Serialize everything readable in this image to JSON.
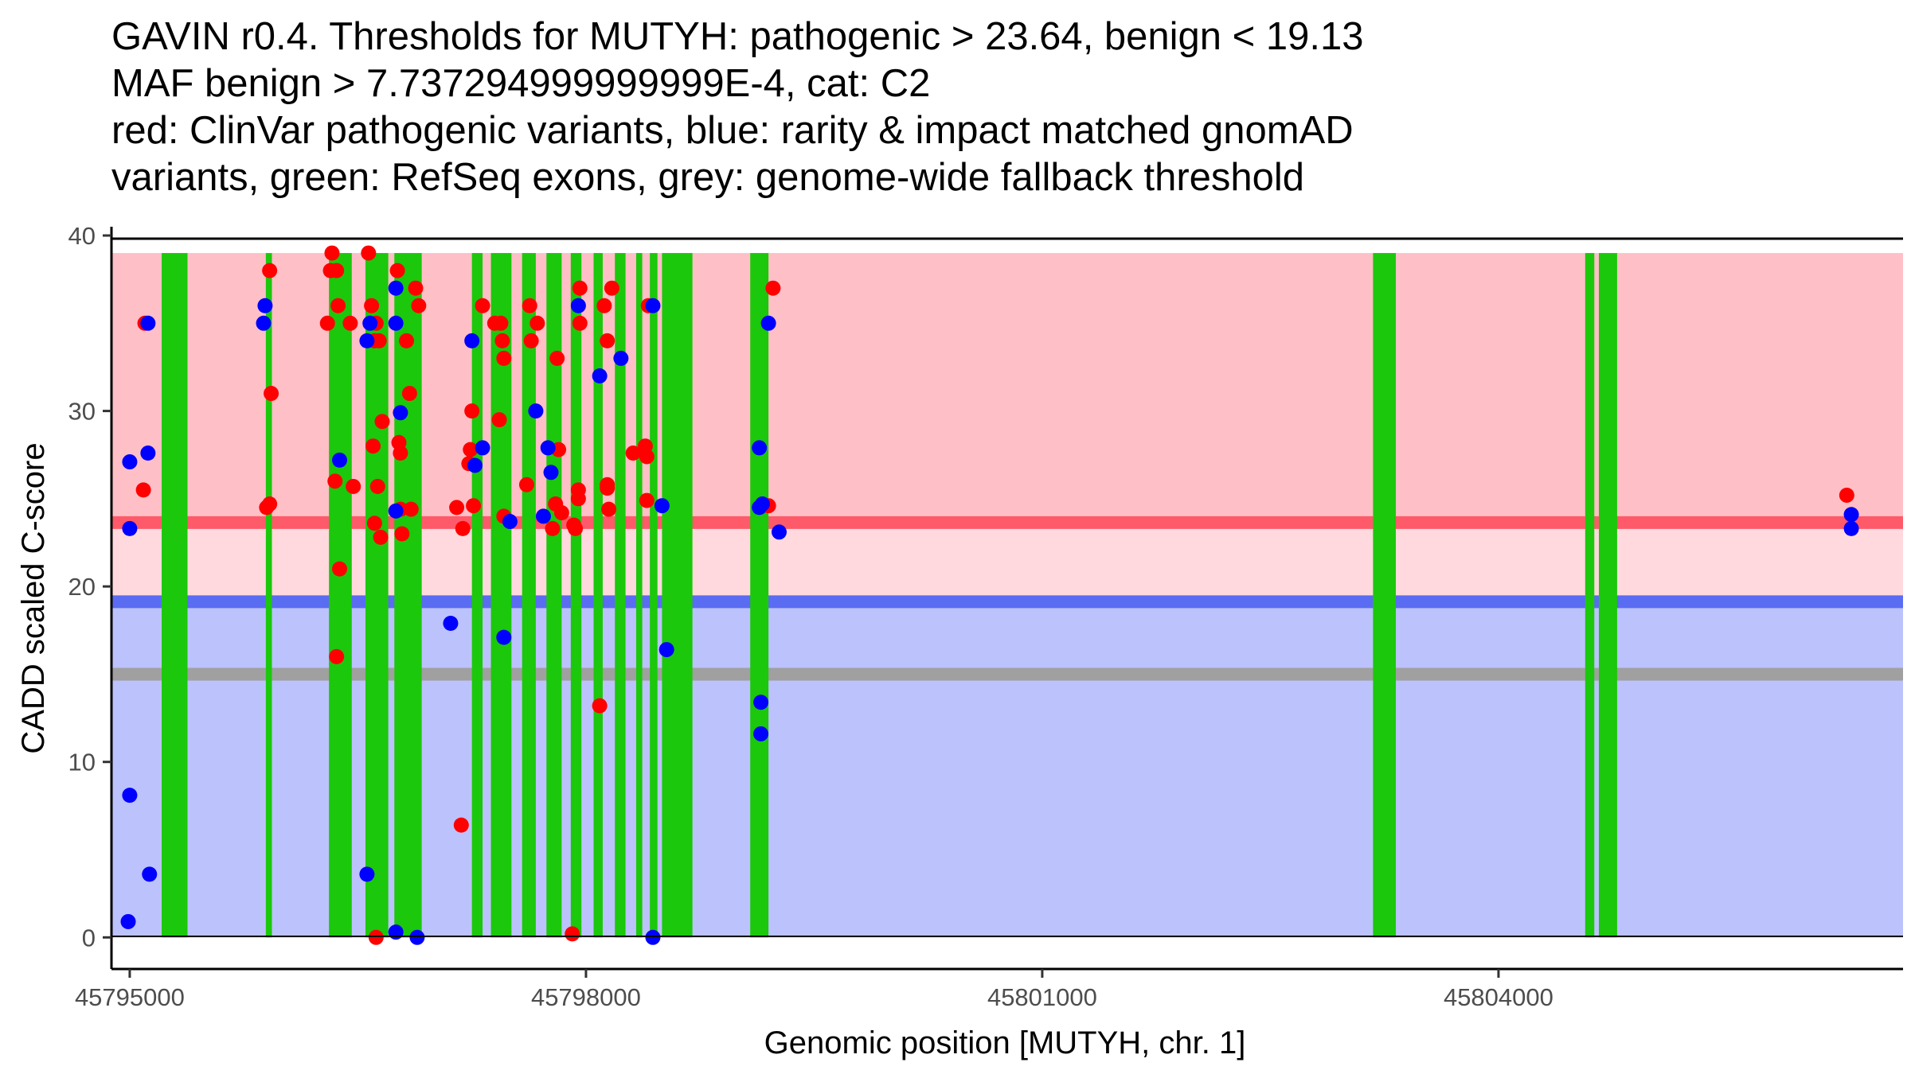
{
  "chart_data": {
    "type": "scatter",
    "title_lines": [
      "GAVIN r0.4. Thresholds for MUTYH: pathogenic > 23.64, benign < 19.13",
      "MAF benign > 7.737294999999999E-4, cat: C2",
      "red: ClinVar pathogenic variants, blue: rarity & impact matched gnomAD",
      "variants, green: RefSeq exons, grey: genome-wide fallback threshold"
    ],
    "xlabel": "Genomic position [MUTYH, chr. 1]",
    "ylabel": "CADD scaled C-score",
    "xlim": [
      45794880,
      45806660
    ],
    "ylim": [
      -1.8,
      40.5
    ],
    "x_ticks": [
      45795000,
      45798000,
      45801000,
      45804000
    ],
    "y_ticks": [
      0,
      10,
      20,
      30,
      40
    ],
    "thresholds": {
      "pathogenic": 23.64,
      "benign": 19.13,
      "genome_wide_fallback": 15,
      "max_score": 39
    },
    "colors": {
      "pathogenic_region": "#ffbfc6",
      "uncertain_region": "#ffd9de",
      "benign_region": "#bcc2fb",
      "pathogenic_line": "#ff5a6a",
      "benign_line": "#5a6cf2",
      "fallback_line": "#a0a0a0",
      "exon": "#1bc80b",
      "clinvar": "#ff0000",
      "gnomad": "#0000ff"
    },
    "exons": [
      [
        45795210,
        45795380
      ],
      [
        45795895,
        45795935
      ],
      [
        45796310,
        45796460
      ],
      [
        45796550,
        45796700
      ],
      [
        45796740,
        45796920
      ],
      [
        45797250,
        45797320
      ],
      [
        45797375,
        45797510
      ],
      [
        45797580,
        45797670
      ],
      [
        45797740,
        45797840
      ],
      [
        45797900,
        45797970
      ],
      [
        45798050,
        45798110
      ],
      [
        45798190,
        45798260
      ],
      [
        45798330,
        45798370
      ],
      [
        45798420,
        45798470
      ],
      [
        45798500,
        45798700
      ],
      [
        45799080,
        45799200
      ],
      [
        45803175,
        45803325
      ],
      [
        45804570,
        45804630
      ],
      [
        45804660,
        45804780
      ]
    ],
    "series": [
      {
        "name": "ClinVar pathogenic variants",
        "color": "#ff0000",
        "points": [
          [
            45795100,
            35
          ],
          [
            45795090,
            25.5
          ],
          [
            45795920,
            38
          ],
          [
            45795930,
            31
          ],
          [
            45795900,
            24.5
          ],
          [
            45795920,
            24.7
          ],
          [
            45796300,
            35
          ],
          [
            45796330,
            39
          ],
          [
            45796320,
            38
          ],
          [
            45796360,
            38
          ],
          [
            45796370,
            36
          ],
          [
            45796350,
            26
          ],
          [
            45796380,
            21
          ],
          [
            45796360,
            16
          ],
          [
            45796450,
            35
          ],
          [
            45796470,
            25.7
          ],
          [
            45796570,
            39
          ],
          [
            45796590,
            36
          ],
          [
            45796600,
            28
          ],
          [
            45796620,
            35
          ],
          [
            45796610,
            34
          ],
          [
            45796640,
            34
          ],
          [
            45796630,
            25.7
          ],
          [
            45796610,
            23.6
          ],
          [
            45796660,
            29.4
          ],
          [
            45796650,
            22.8
          ],
          [
            45796620,
            0
          ],
          [
            45796760,
            38
          ],
          [
            45796780,
            27.6
          ],
          [
            45796770,
            28.2
          ],
          [
            45796780,
            24.4
          ],
          [
            45796790,
            23
          ],
          [
            45796820,
            34
          ],
          [
            45796840,
            31
          ],
          [
            45796850,
            24.4
          ],
          [
            45796880,
            37
          ],
          [
            45796900,
            36
          ],
          [
            45797150,
            24.5
          ],
          [
            45797190,
            23.3
          ],
          [
            45797230,
            27
          ],
          [
            45797240,
            27.8
          ],
          [
            45797250,
            30
          ],
          [
            45797260,
            24.6
          ],
          [
            45797180,
            6.4
          ],
          [
            45797320,
            36
          ],
          [
            45797400,
            35
          ],
          [
            45797440,
            35
          ],
          [
            45797460,
            33
          ],
          [
            45797450,
            34
          ],
          [
            45797430,
            29.5
          ],
          [
            45797460,
            24
          ],
          [
            45797630,
            36
          ],
          [
            45797640,
            34
          ],
          [
            45797680,
            35
          ],
          [
            45797610,
            25.8
          ],
          [
            45797810,
            33
          ],
          [
            45797820,
            27.8
          ],
          [
            45797780,
            23.3
          ],
          [
            45797800,
            24.7
          ],
          [
            45797840,
            24.2
          ],
          [
            45797920,
            23.5
          ],
          [
            45797930,
            23.3
          ],
          [
            45797950,
            25.5
          ],
          [
            45797950,
            25
          ],
          [
            45797910,
            0.2
          ],
          [
            45797960,
            35
          ],
          [
            45797960,
            37
          ],
          [
            45798120,
            36
          ],
          [
            45798140,
            34
          ],
          [
            45798170,
            37
          ],
          [
            45798140,
            25.8
          ],
          [
            45798140,
            25.6
          ],
          [
            45798150,
            24.4
          ],
          [
            45798090,
            13.2
          ],
          [
            45798310,
            27.6
          ],
          [
            45798390,
            28
          ],
          [
            45798400,
            27.4
          ],
          [
            45798410,
            36
          ],
          [
            45798400,
            24.9
          ],
          [
            45799230,
            37
          ],
          [
            45799200,
            24.6
          ],
          [
            45806290,
            25.2
          ]
        ]
      },
      {
        "name": "rarity & impact matched gnomAD variants",
        "color": "#0000ff",
        "points": [
          [
            45795120,
            35
          ],
          [
            45795000,
            27.1
          ],
          [
            45795120,
            27.6
          ],
          [
            45795000,
            23.3
          ],
          [
            45795000,
            8.1
          ],
          [
            45795130,
            3.6
          ],
          [
            45794990,
            0.9
          ],
          [
            45795890,
            36
          ],
          [
            45795880,
            35
          ],
          [
            45796380,
            27.2
          ],
          [
            45796560,
            34
          ],
          [
            45796580,
            35
          ],
          [
            45796750,
            37
          ],
          [
            45796750,
            35
          ],
          [
            45796780,
            29.9
          ],
          [
            45796750,
            24.3
          ],
          [
            45796560,
            3.6
          ],
          [
            45796750,
            0.3
          ],
          [
            45796890,
            0
          ],
          [
            45797250,
            34
          ],
          [
            45797270,
            26.9
          ],
          [
            45797320,
            27.9
          ],
          [
            45797460,
            17.1
          ],
          [
            45797500,
            23.7
          ],
          [
            45797670,
            30
          ],
          [
            45797720,
            24
          ],
          [
            45797750,
            27.9
          ],
          [
            45797770,
            26.5
          ],
          [
            45797950,
            36
          ],
          [
            45798090,
            32
          ],
          [
            45798230,
            33
          ],
          [
            45798440,
            36
          ],
          [
            45798500,
            24.6
          ],
          [
            45798530,
            16.4
          ],
          [
            45798440,
            0
          ],
          [
            45797110,
            17.9
          ],
          [
            45799140,
            27.9
          ],
          [
            45799140,
            24.5
          ],
          [
            45799160,
            24.7
          ],
          [
            45799200,
            35
          ],
          [
            45799270,
            23.1
          ],
          [
            45799150,
            13.4
          ],
          [
            45799150,
            11.6
          ],
          [
            45806320,
            24.1
          ],
          [
            45806320,
            23.3
          ]
        ]
      }
    ]
  }
}
